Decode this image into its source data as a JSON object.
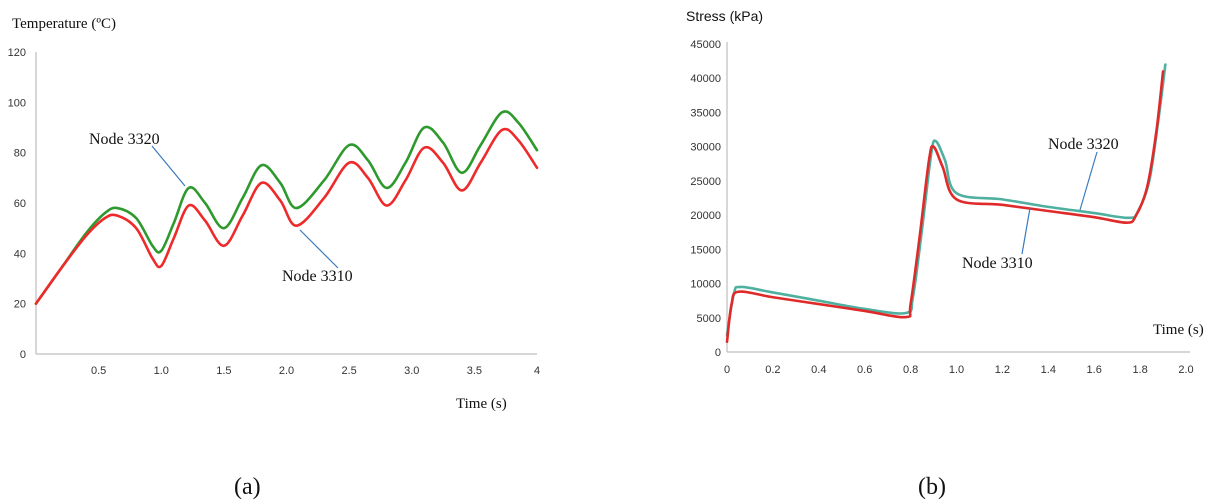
{
  "chart_data": [
    {
      "type": "line",
      "panel_label": "(a)",
      "ylabel": "Temperature (ºC)",
      "xlabel": "Time (s)",
      "xlim": [
        0,
        4
      ],
      "ylim": [
        0,
        120
      ],
      "x_ticks": [
        "0.5",
        "1.0",
        "1.5",
        "2.0",
        "2.5",
        "3.0",
        "3.5",
        "4"
      ],
      "y_ticks": [
        "0",
        "20",
        "40",
        "60",
        "80",
        "100",
        "120"
      ],
      "grid": false,
      "series": [
        {
          "name": "Node 3320",
          "color": "#2e9a2e",
          "x": [
            0,
            0.2,
            0.4,
            0.55,
            0.65,
            0.8,
            0.93,
            1.0,
            1.1,
            1.22,
            1.35,
            1.5,
            1.65,
            1.8,
            1.95,
            2.08,
            2.3,
            2.5,
            2.65,
            2.8,
            2.95,
            3.1,
            3.25,
            3.4,
            3.55,
            3.72,
            3.85,
            4.0
          ],
          "y": [
            20,
            34,
            48,
            56,
            58,
            54,
            43,
            41,
            52,
            66,
            60,
            50,
            62,
            75,
            68,
            58,
            69,
            83,
            77,
            66,
            76,
            90,
            84,
            72,
            83,
            96,
            92,
            81
          ]
        },
        {
          "name": "Node 3310",
          "color": "#ee2a2a",
          "x": [
            0,
            0.2,
            0.4,
            0.55,
            0.65,
            0.8,
            0.93,
            1.0,
            1.1,
            1.22,
            1.35,
            1.5,
            1.65,
            1.8,
            1.95,
            2.08,
            2.3,
            2.5,
            2.65,
            2.8,
            2.95,
            3.1,
            3.25,
            3.4,
            3.55,
            3.72,
            3.85,
            4.0
          ],
          "y": [
            20,
            34,
            47,
            54,
            55,
            50,
            38,
            35,
            46,
            59,
            53,
            43,
            55,
            68,
            61,
            51,
            62,
            76,
            70,
            59,
            69,
            82,
            76,
            65,
            76,
            89,
            85,
            74
          ]
        }
      ],
      "annotations": [
        {
          "text": "Node 3320",
          "series": "Node 3320",
          "x": 1.22,
          "y": 66
        },
        {
          "text": "Node 3310",
          "series": "Node 3310",
          "x": 2.08,
          "y": 51
        }
      ]
    },
    {
      "type": "line",
      "panel_label": "(b)",
      "ylabel": "Stress (kPa)",
      "xlabel": "Time (s)",
      "xlim": [
        0,
        2.0
      ],
      "ylim": [
        0,
        45000
      ],
      "x_ticks": [
        "0",
        "0.2",
        "0.4",
        "0.6",
        "0.8",
        "1.0",
        "1.2",
        "1.4",
        "1.6",
        "1.8",
        "2.0"
      ],
      "y_ticks": [
        "0",
        "5000",
        "10000",
        "15000",
        "20000",
        "25000",
        "30000",
        "35000",
        "40000",
        "45000"
      ],
      "grid": false,
      "series": [
        {
          "name": "Node 3320",
          "color": "#4fb0a0",
          "x": [
            0,
            0.03,
            0.06,
            0.2,
            0.4,
            0.6,
            0.78,
            0.81,
            0.85,
            0.89,
            0.91,
            0.95,
            1.0,
            1.2,
            1.4,
            1.6,
            1.75,
            1.79,
            1.84,
            1.88,
            1.91
          ],
          "y": [
            2500,
            8500,
            9500,
            8700,
            7500,
            6300,
            5700,
            8000,
            18000,
            29000,
            30800,
            28000,
            23200,
            22300,
            21200,
            20300,
            19600,
            20500,
            25000,
            34000,
            42000
          ]
        },
        {
          "name": "Node 3310",
          "color": "#e02a2a",
          "x": [
            0,
            0.02,
            0.05,
            0.2,
            0.4,
            0.6,
            0.78,
            0.8,
            0.84,
            0.88,
            0.9,
            0.94,
            1.0,
            1.2,
            1.4,
            1.6,
            1.74,
            1.78,
            1.83,
            1.87,
            1.9
          ],
          "y": [
            1500,
            7000,
            8800,
            8000,
            7000,
            6000,
            5100,
            7000,
            17000,
            28000,
            30000,
            27000,
            22300,
            21500,
            20600,
            19700,
            18900,
            19800,
            24000,
            32000,
            41000
          ]
        }
      ],
      "annotations": [
        {
          "text": "Node 3320",
          "series": "Node 3320",
          "x": 1.55,
          "y": 20600
        },
        {
          "text": "Node 3310",
          "series": "Node 3310",
          "x": 1.3,
          "y": 21000
        }
      ]
    }
  ]
}
